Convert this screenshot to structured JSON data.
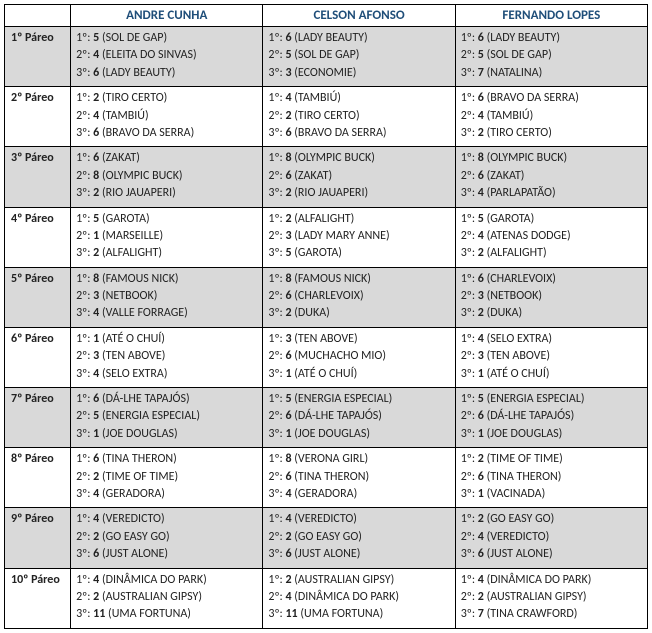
{
  "headers": [
    "ANDRE CUNHA",
    "CELSON AFONSO",
    "FERNANDO LOPES"
  ],
  "colors": {
    "header_text": "#1f4e79",
    "alt_bg": "#d9d9d9",
    "border": "#000000",
    "text": "#222222"
  },
  "fontsize": 12,
  "rows": [
    {
      "label": "1º Páreo",
      "alt": true,
      "cells": [
        [
          [
            "1º:",
            "5",
            "(SOL DE GAP)"
          ],
          [
            "2º:",
            "4",
            "(ELEITA DO SINVAS)"
          ],
          [
            "3º:",
            "6",
            "(LADY BEAUTY)"
          ]
        ],
        [
          [
            "1º:",
            "6",
            "(LADY BEAUTY)"
          ],
          [
            "2º:",
            "5",
            "(SOL DE GAP)"
          ],
          [
            "3º:",
            "3",
            "(ECONOMIE)"
          ]
        ],
        [
          [
            "1º:",
            "6",
            "(LADY BEAUTY)"
          ],
          [
            "2º:",
            "5",
            "(SOL DE GAP)"
          ],
          [
            "3º:",
            "7",
            "(NATALINA)"
          ]
        ]
      ]
    },
    {
      "label": "2º Páreo",
      "alt": false,
      "cells": [
        [
          [
            "1º:",
            "2",
            "(TIRO CERTO)"
          ],
          [
            "2º:",
            "4",
            "(TAMBIÚ)"
          ],
          [
            "3º:",
            "6",
            "(BRAVO DA SERRA)"
          ]
        ],
        [
          [
            "1º:",
            "4",
            "(TAMBIÚ)"
          ],
          [
            "2º:",
            "2",
            "(TIRO CERTO)"
          ],
          [
            "3º:",
            "6",
            "(BRAVO DA SERRA)"
          ]
        ],
        [
          [
            "1º:",
            "6",
            "(BRAVO DA SERRA)"
          ],
          [
            "2º:",
            "4",
            "(TAMBIÚ)"
          ],
          [
            "3º:",
            "2",
            "(TIRO CERTO)"
          ]
        ]
      ]
    },
    {
      "label": "3º Páreo",
      "alt": true,
      "cells": [
        [
          [
            "1º:",
            "6",
            "(ZAKAT)"
          ],
          [
            "2º:",
            "8",
            "(OLYMPIC BUCK)"
          ],
          [
            "3º:",
            "2",
            "(RIO JAUAPERI)"
          ]
        ],
        [
          [
            "1º:",
            "8",
            "(OLYMPIC BUCK)"
          ],
          [
            "2º:",
            "6",
            "(ZAKAT)"
          ],
          [
            "3º:",
            "2",
            "(RIO JAUAPERI)"
          ]
        ],
        [
          [
            "1º:",
            "8",
            "(OLYMPIC BUCK)"
          ],
          [
            "2º:",
            "6",
            "(ZAKAT)"
          ],
          [
            "3º:",
            "4",
            "(PARLAPATÃO)"
          ]
        ]
      ]
    },
    {
      "label": "4º Páreo",
      "alt": false,
      "cells": [
        [
          [
            "1º:",
            "5",
            "(GAROTA)"
          ],
          [
            "2º:",
            "1",
            "(MARSEILLE)"
          ],
          [
            "3º:",
            "2",
            "(ALFALIGHT)"
          ]
        ],
        [
          [
            "1º:",
            "2",
            "(ALFALIGHT)"
          ],
          [
            "2º:",
            "3",
            "(LADY MARY ANNE)"
          ],
          [
            "3º:",
            "5",
            "(GAROTA)"
          ]
        ],
        [
          [
            "1º:",
            "5",
            "(GAROTA)"
          ],
          [
            "2º:",
            "4",
            "(ATENAS DODGE)"
          ],
          [
            "3º:",
            "2",
            "(ALFALIGHT)"
          ]
        ]
      ]
    },
    {
      "label": "5º Páreo",
      "alt": true,
      "cells": [
        [
          [
            "1º:",
            "8",
            "(FAMOUS NICK)"
          ],
          [
            "2º:",
            "3",
            "(NETBOOK)"
          ],
          [
            "3º:",
            "4",
            "(VALLE FORRAGE)"
          ]
        ],
        [
          [
            "1º:",
            "8",
            "(FAMOUS NICK)"
          ],
          [
            "2º:",
            "6",
            "(CHARLEVOIX)"
          ],
          [
            "3º:",
            "2",
            "(DUKA)"
          ]
        ],
        [
          [
            "1º:",
            "6",
            "(CHARLEVOIX)"
          ],
          [
            "2º:",
            "3",
            "(NETBOOK)"
          ],
          [
            "3º:",
            "2",
            "(DUKA)"
          ]
        ]
      ]
    },
    {
      "label": "6º Páreo",
      "alt": false,
      "cells": [
        [
          [
            "1º:",
            "1",
            "(ATÉ O CHUÍ)"
          ],
          [
            "2º:",
            "3",
            "(TEN ABOVE)"
          ],
          [
            "3º:",
            "4",
            "(SELO EXTRA)"
          ]
        ],
        [
          [
            "1º:",
            "3",
            "(TEN ABOVE)"
          ],
          [
            "2º:",
            "6",
            "(MUCHACHO MIO)"
          ],
          [
            "3º:",
            "1",
            "(ATÉ O CHUÍ)"
          ]
        ],
        [
          [
            "1º:",
            "4",
            "(SELO EXTRA)"
          ],
          [
            "2º:",
            "3",
            "(TEN ABOVE)"
          ],
          [
            "3º:",
            "1",
            "(ATÉ O CHUÍ)"
          ]
        ]
      ]
    },
    {
      "label": "7º Páreo",
      "alt": true,
      "cells": [
        [
          [
            "1º:",
            "6",
            "(DÁ-LHE TAPAJÓS)"
          ],
          [
            "2º:",
            "5",
            "(ENERGIA ESPECIAL)"
          ],
          [
            "3º:",
            "1",
            "(JOE DOUGLAS)"
          ]
        ],
        [
          [
            "1º:",
            "5",
            "(ENERGIA ESPECIAL)"
          ],
          [
            "2º:",
            "6",
            "(DÁ-LHE TAPAJÓS)"
          ],
          [
            "3º:",
            "1",
            "(JOE DOUGLAS)"
          ]
        ],
        [
          [
            "1º:",
            "5",
            "(ENERGIA ESPECIAL)"
          ],
          [
            "2º:",
            "6",
            "(DÁ-LHE TAPAJÓS)"
          ],
          [
            "3º:",
            "1",
            "(JOE DOUGLAS)"
          ]
        ]
      ]
    },
    {
      "label": "8º Páreo",
      "alt": false,
      "cells": [
        [
          [
            "1º:",
            "6",
            "(TINA THERON)"
          ],
          [
            "2º:",
            "2",
            "(TIME OF TIME)"
          ],
          [
            "3º:",
            "4",
            "(GERADORA)"
          ]
        ],
        [
          [
            "1º:",
            "8",
            "(VERONA GIRL)"
          ],
          [
            "2º:",
            "6",
            "(TINA THERON)"
          ],
          [
            "3º:",
            "4",
            "(GERADORA)"
          ]
        ],
        [
          [
            "1º:",
            "2",
            "(TIME OF TIME)"
          ],
          [
            "2º:",
            "6",
            "(TINA THERON)"
          ],
          [
            "3º:",
            "1",
            "(VACINADA)"
          ]
        ]
      ]
    },
    {
      "label": "9º Páreo",
      "alt": true,
      "cells": [
        [
          [
            "1º:",
            "4",
            "(VEREDICTO)"
          ],
          [
            "2º:",
            "2",
            "(GO EASY GO)"
          ],
          [
            "3º:",
            "6",
            "(JUST ALONE)"
          ]
        ],
        [
          [
            "1º:",
            "4",
            "(VEREDICTO)"
          ],
          [
            "2º:",
            "2",
            "(GO EASY GO)"
          ],
          [
            "3º:",
            "6",
            "(JUST ALONE)"
          ]
        ],
        [
          [
            "1º:",
            "2",
            "(GO EASY GO)"
          ],
          [
            "2º:",
            "4",
            "(VEREDICTO)"
          ],
          [
            "3º:",
            "6",
            "(JUST ALONE)"
          ]
        ]
      ]
    },
    {
      "label": "10º Páreo",
      "alt": false,
      "cells": [
        [
          [
            "1º:",
            "4",
            "(DINÂMICA DO PARK)"
          ],
          [
            "2º:",
            "2",
            "(AUSTRALIAN GIPSY)"
          ],
          [
            "3º:",
            "11",
            "(UMA FORTUNA)"
          ]
        ],
        [
          [
            "1º:",
            "2",
            "(AUSTRALIAN GIPSY)"
          ],
          [
            "2º:",
            "4",
            "(DINÂMICA DO PARK)"
          ],
          [
            "3º:",
            "11",
            "(UMA FORTUNA)"
          ]
        ],
        [
          [
            "1º:",
            "4",
            "(DINÂMICA DO PARK)"
          ],
          [
            "2º:",
            "2",
            "(AUSTRALIAN GIPSY)"
          ],
          [
            "3º:",
            "7",
            "(TINA CRAWFORD)"
          ]
        ]
      ]
    }
  ]
}
